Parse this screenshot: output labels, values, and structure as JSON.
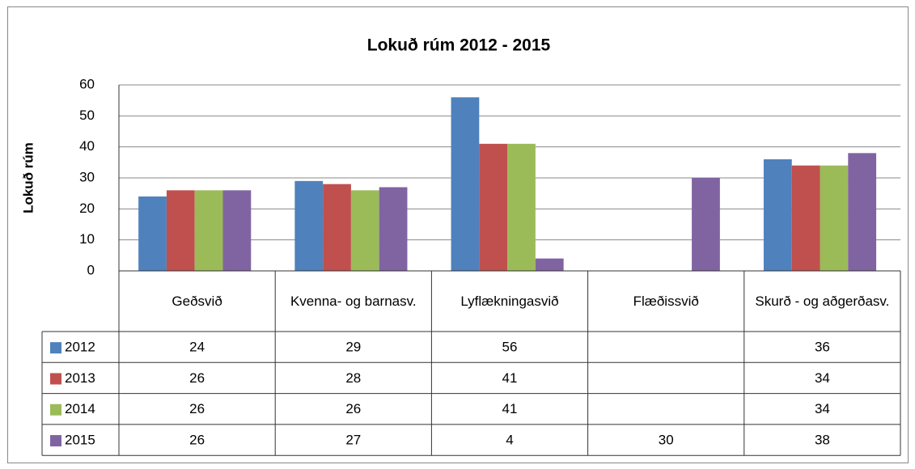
{
  "chart_data": {
    "type": "bar",
    "title": "Lokuð rúm 2012 - 2015",
    "y_label": "Lokuð rúm",
    "categories": [
      "Geðsvið",
      "Kvenna- og barnasv.",
      "Lyflækningasvið",
      "Flæðissvið",
      "Skurð - og aðgerðasv."
    ],
    "series": [
      {
        "name": "2012",
        "color": "#4f81bd",
        "values": [
          24,
          29,
          56,
          null,
          36
        ]
      },
      {
        "name": "2013",
        "color": "#c0504d",
        "values": [
          26,
          28,
          41,
          null,
          34
        ]
      },
      {
        "name": "2014",
        "color": "#9bbb59",
        "values": [
          26,
          26,
          41,
          null,
          34
        ]
      },
      {
        "name": "2015",
        "color": "#8064a2",
        "values": [
          26,
          27,
          4,
          30,
          38
        ]
      }
    ],
    "ylim": [
      0,
      60
    ],
    "yticks": [
      0,
      10,
      20,
      30,
      40,
      50,
      60
    ],
    "grid": true,
    "data_table": true
  }
}
